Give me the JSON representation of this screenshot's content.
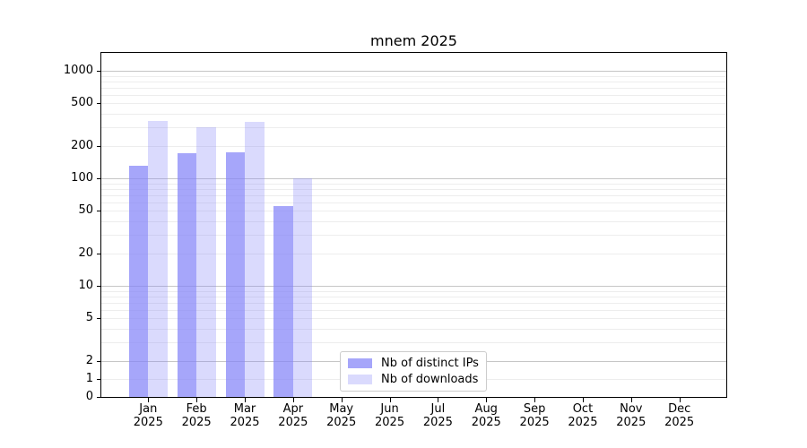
{
  "chart_data": {
    "type": "bar",
    "title": "mnem 2025",
    "xlabel": "",
    "ylabel": "",
    "yscale": "symlog",
    "ylim": [
      0,
      1470
    ],
    "y_ticks": [
      1000,
      500,
      200,
      100,
      50,
      20,
      10,
      5,
      2,
      1,
      0
    ],
    "y_major_gridlines": [
      2,
      10,
      100,
      1000
    ],
    "grid": "horizontal, log minor gridlines on",
    "legend_position": "lower center inside axes",
    "categories": [
      "Jan 2025",
      "Feb 2025",
      "Mar 2025",
      "Apr 2025",
      "May 2025",
      "Jun 2025",
      "Jul 2025",
      "Aug 2025",
      "Sep 2025",
      "Oct 2025",
      "Nov 2025",
      "Dec 2025"
    ],
    "series": [
      {
        "name": "Nb of distinct IPs",
        "color": "#8383f8",
        "alpha": 0.72,
        "values": [
          130,
          170,
          175,
          55,
          null,
          null,
          null,
          null,
          null,
          null,
          null,
          null
        ]
      },
      {
        "name": "Nb of downloads",
        "color": "#8383f8",
        "alpha": 0.3,
        "values": [
          340,
          300,
          335,
          100,
          null,
          null,
          null,
          null,
          null,
          null,
          null,
          null
        ]
      }
    ]
  },
  "colors": {
    "spine": "#000000",
    "major_grid": "#c6c6c6",
    "minor_grid": "#ededed",
    "legend_border": "#cccccc",
    "background": "#ffffff"
  }
}
